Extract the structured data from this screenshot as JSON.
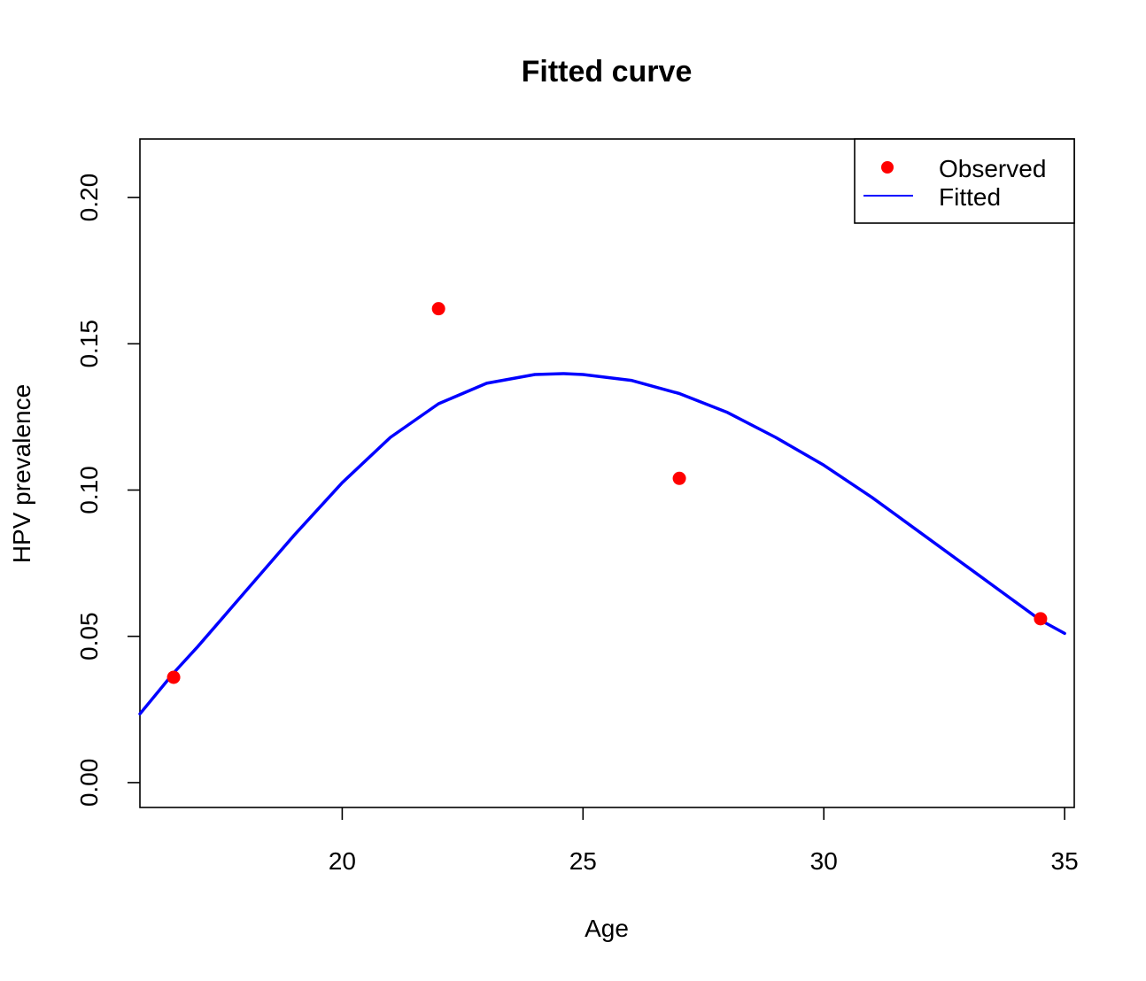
{
  "chart_data": {
    "type": "line",
    "title": "Fitted curve",
    "xlabel": "Age",
    "ylabel": "HPV prevalence",
    "xlim": [
      15.8,
      35.2
    ],
    "ylim": [
      -0.0085,
      0.22
    ],
    "xticks": [
      20,
      25,
      30,
      35
    ],
    "yticks": [
      0.0,
      0.05,
      0.1,
      0.15,
      0.2
    ],
    "xtick_labels": [
      "20",
      "25",
      "30",
      "35"
    ],
    "ytick_labels": [
      "0.00",
      "0.05",
      "0.10",
      "0.15",
      "0.20"
    ],
    "grid": false,
    "legend_position": "top-right",
    "series": [
      {
        "name": "Observed",
        "kind": "points",
        "color": "#ff0000",
        "x": [
          16.5,
          22,
          27,
          34.5
        ],
        "y": [
          0.036,
          0.162,
          0.104,
          0.056
        ]
      },
      {
        "name": "Fitted",
        "kind": "line",
        "color": "#0000ff",
        "x": [
          15.8,
          16.5,
          17,
          18,
          19,
          20,
          21,
          22,
          23,
          24,
          24.6,
          25,
          26,
          27,
          28,
          29,
          30,
          31,
          32,
          33,
          34,
          34.5,
          35
        ],
        "y": [
          0.0235,
          0.0375,
          0.0465,
          0.0655,
          0.0845,
          0.1025,
          0.118,
          0.1295,
          0.1365,
          0.1395,
          0.1398,
          0.1395,
          0.1375,
          0.133,
          0.1265,
          0.118,
          0.1085,
          0.0975,
          0.0855,
          0.0735,
          0.0615,
          0.0555,
          0.051
        ]
      }
    ]
  }
}
